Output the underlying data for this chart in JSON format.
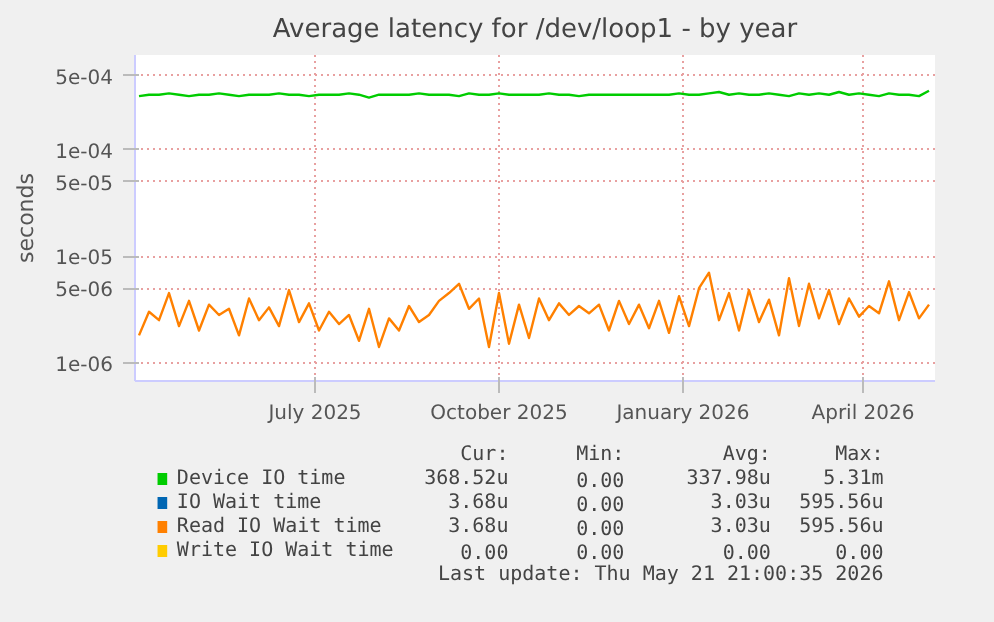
{
  "chart_data": {
    "type": "line",
    "title": "Average latency for /dev/loop1 - by year",
    "ylabel": "seconds",
    "log": "y",
    "grid": true,
    "legend": "bottom",
    "x": [
      "2025-04-18",
      "2025-04-23",
      "2025-04-28",
      "2025-05-03",
      "2025-05-08",
      "2025-05-13",
      "2025-05-18",
      "2025-05-23",
      "2025-05-28",
      "2025-06-02",
      "2025-06-07",
      "2025-06-12",
      "2025-06-17",
      "2025-06-22",
      "2025-06-27",
      "2025-07-02",
      "2025-07-07",
      "2025-07-12",
      "2025-07-17",
      "2025-07-22",
      "2025-07-27",
      "2025-08-01",
      "2025-08-06",
      "2025-08-11",
      "2025-08-16",
      "2025-08-21",
      "2025-08-26",
      "2025-08-31",
      "2025-09-05",
      "2025-09-10",
      "2025-09-15",
      "2025-09-20",
      "2025-09-25",
      "2025-09-30",
      "2025-10-05",
      "2025-10-10",
      "2025-10-15",
      "2025-10-20",
      "2025-10-25",
      "2025-10-30",
      "2025-11-04",
      "2025-11-09",
      "2025-11-14",
      "2025-11-19",
      "2025-11-24",
      "2025-11-29",
      "2025-12-04",
      "2025-12-09",
      "2025-12-14",
      "2025-12-19",
      "2025-12-24",
      "2025-12-29",
      "2026-01-03",
      "2026-01-08",
      "2026-01-13",
      "2026-01-18",
      "2026-01-23",
      "2026-01-28",
      "2026-02-02",
      "2026-02-07",
      "2026-02-12",
      "2026-02-17",
      "2026-02-22",
      "2026-02-27",
      "2026-03-04",
      "2026-03-09",
      "2026-03-14",
      "2026-03-19",
      "2026-03-24",
      "2026-03-29",
      "2026-04-03",
      "2026-04-08",
      "2026-04-13",
      "2026-04-18",
      "2026-04-23",
      "2026-04-28",
      "2026-05-03",
      "2026-05-08",
      "2026-05-13",
      "2026-05-18"
    ],
    "xlim": [
      "2025-04-16",
      "2026-05-21"
    ],
    "xticks": [
      {
        "value": "2025-07-15",
        "label": "July 2025"
      },
      {
        "value": "2025-10-15",
        "label": "October 2025"
      },
      {
        "value": "2026-01-15",
        "label": "January 2026"
      },
      {
        "value": "2026-04-15",
        "label": "April 2026"
      }
    ],
    "ylim": [
      6.7e-07,
      0.00078
    ],
    "yticks": [
      {
        "value": 1e-06,
        "label": "1e-06"
      },
      {
        "value": 5e-06,
        "label": "5e-06"
      },
      {
        "value": 1e-05,
        "label": "1e-05"
      },
      {
        "value": 5e-05,
        "label": "5e-05"
      },
      {
        "value": 0.0001,
        "label": "1e-04"
      },
      {
        "value": 0.0005,
        "label": "5e-04"
      }
    ],
    "series": [
      {
        "name": "Device IO time",
        "color": "#00cc00",
        "values": [
          0.00032,
          0.00033,
          0.00033,
          0.00034,
          0.00033,
          0.00032,
          0.00033,
          0.00033,
          0.00034,
          0.00033,
          0.00032,
          0.00033,
          0.00033,
          0.00033,
          0.00034,
          0.00033,
          0.00033,
          0.00032,
          0.00033,
          0.00033,
          0.00033,
          0.00034,
          0.00033,
          0.00031,
          0.00033,
          0.00033,
          0.00033,
          0.00033,
          0.00034,
          0.00033,
          0.00033,
          0.00033,
          0.00032,
          0.00034,
          0.00033,
          0.00033,
          0.00034,
          0.00033,
          0.00033,
          0.00033,
          0.00033,
          0.00034,
          0.00033,
          0.00033,
          0.00032,
          0.00033,
          0.00033,
          0.00033,
          0.00033,
          0.00033,
          0.00033,
          0.00033,
          0.00033,
          0.00033,
          0.00034,
          0.00033,
          0.00033,
          0.00034,
          0.00035,
          0.00033,
          0.00034,
          0.00033,
          0.00033,
          0.00034,
          0.00033,
          0.00032,
          0.00034,
          0.00033,
          0.00034,
          0.00033,
          0.00035,
          0.00033,
          0.00034,
          0.00033,
          0.00032,
          0.00034,
          0.00033,
          0.00033,
          0.00032,
          0.00036
        ]
      },
      {
        "name": "IO Wait time",
        "color": "#0066b3",
        "values": [
          null,
          null,
          null,
          null,
          null,
          null,
          null,
          null,
          null,
          null,
          null,
          null,
          null,
          null,
          null,
          null,
          null,
          null,
          null,
          null,
          null,
          null,
          null,
          null,
          null,
          null,
          null,
          null,
          null,
          null,
          null,
          null,
          null,
          null,
          null,
          null,
          null,
          null,
          null,
          null,
          null,
          null,
          null,
          null,
          null,
          null,
          null,
          null,
          null,
          null,
          null,
          null,
          null,
          null,
          null,
          null,
          null,
          null,
          null,
          null,
          null,
          null,
          null,
          null,
          null,
          null,
          null,
          null,
          null,
          null,
          null,
          null,
          null,
          null,
          null,
          null,
          null,
          null,
          null,
          null
        ]
      },
      {
        "name": "Read IO Wait time",
        "color": "#ff8000",
        "values": [
          1.8e-06,
          3e-06,
          2.5e-06,
          4.5e-06,
          2.2e-06,
          3.8e-06,
          2e-06,
          3.5e-06,
          2.8e-06,
          3.2e-06,
          1.8e-06,
          4e-06,
          2.5e-06,
          3.3e-06,
          2.2e-06,
          4.8e-06,
          2.4e-06,
          3.6e-06,
          2e-06,
          3e-06,
          2.3e-06,
          2.8e-06,
          1.6e-06,
          3.2e-06,
          1.4e-06,
          2.6e-06,
          2e-06,
          3.4e-06,
          2.4e-06,
          2.8e-06,
          3.8e-06,
          4.5e-06,
          5.5e-06,
          3.2e-06,
          4e-06,
          1.4e-06,
          4.5e-06,
          1.5e-06,
          3.5e-06,
          1.7e-06,
          4e-06,
          2.5e-06,
          3.6e-06,
          2.8e-06,
          3.4e-06,
          2.9e-06,
          3.5e-06,
          2e-06,
          3.8e-06,
          2.3e-06,
          3.5e-06,
          2.1e-06,
          3.8e-06,
          1.9e-06,
          4.2e-06,
          2.2e-06,
          5e-06,
          7e-06,
          2.5e-06,
          4.5e-06,
          2e-06,
          4.8e-06,
          2.4e-06,
          3.9e-06,
          1.8e-06,
          6.2e-06,
          2.2e-06,
          5.5e-06,
          2.6e-06,
          4.8e-06,
          2.3e-06,
          4e-06,
          2.7e-06,
          3.4e-06,
          2.9e-06,
          5.8e-06,
          2.5e-06,
          4.6e-06,
          2.6e-06,
          3.5e-06
        ]
      },
      {
        "name": "Write IO Wait time",
        "color": "#ffcc00",
        "values": [
          null,
          null,
          null,
          null,
          null,
          null,
          null,
          null,
          null,
          null,
          null,
          null,
          null,
          null,
          null,
          null,
          null,
          null,
          null,
          null,
          null,
          null,
          null,
          null,
          null,
          null,
          null,
          null,
          null,
          null,
          null,
          null,
          null,
          null,
          null,
          null,
          null,
          null,
          null,
          null,
          null,
          null,
          null,
          null,
          null,
          null,
          null,
          null,
          null,
          null,
          null,
          null,
          null,
          null,
          null,
          null,
          null,
          null,
          null,
          null,
          null,
          null,
          null,
          null,
          null,
          null,
          null,
          null,
          null,
          null,
          null,
          null,
          null,
          null,
          null,
          null,
          null,
          null,
          null,
          null
        ]
      }
    ],
    "annotations": [
      "Cur:",
      "Min:",
      "Avg:",
      "Max:",
      "368.52u",
      "0.00",
      "337.98u",
      "5.31m",
      "3.68u",
      "0.00",
      "3.03u",
      "595.56u",
      "3.68u",
      "0.00",
      "3.03u",
      "595.56u",
      "0.00",
      "0.00",
      "0.00",
      "0.00",
      "Last update: Thu May 21 21:00:35 2026"
    ]
  }
}
